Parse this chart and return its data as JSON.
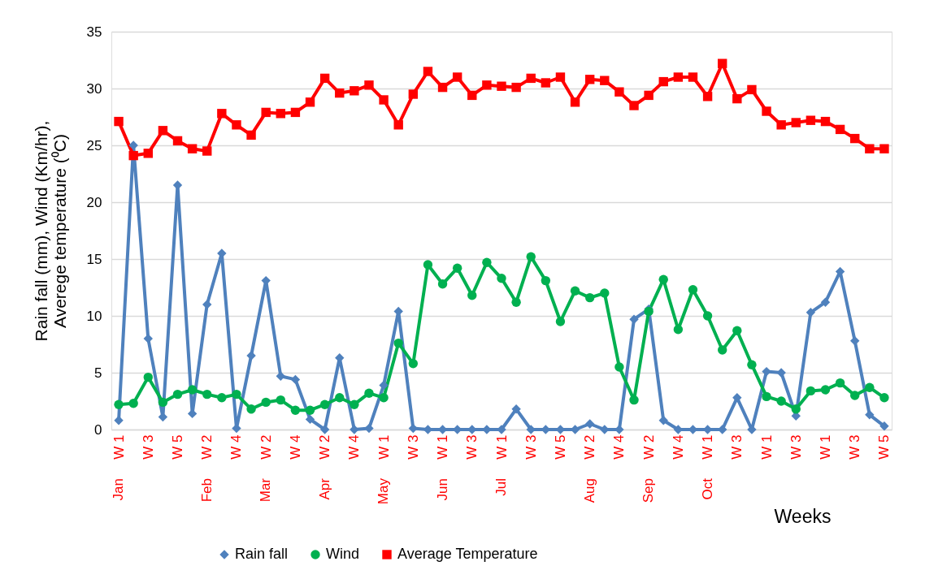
{
  "chart_data": {
    "type": "line",
    "xlabel": "Weeks",
    "ylabel": "Rain fall (mm), Wind (Km/hr),\nAverege temperature (⁰C)",
    "categories": [
      "W 1\nJan",
      null,
      "W 3",
      null,
      "W 5",
      null,
      "W 2\nFeb",
      null,
      "W 4",
      null,
      "W 2\nMar",
      null,
      "W 4",
      null,
      "W 2\nApr",
      null,
      "W 4",
      null,
      "W 1\nMay",
      null,
      "W 3",
      null,
      "W 1\nJun",
      null,
      "W 3",
      null,
      "W 1\nJul",
      null,
      "W 3",
      null,
      "W 5",
      null,
      "W 2\nAug",
      null,
      "W 4",
      null,
      "W 2\nSep",
      null,
      "W 4",
      null,
      "W 1\nOct",
      null,
      "W 3",
      null,
      "W 1",
      null,
      "W 3",
      null,
      "W 1",
      null,
      "W 3",
      null,
      "W 5"
    ],
    "series": [
      {
        "name": "Rain fall",
        "color": "#4f81bd",
        "marker": "diamond",
        "values": [
          0.8,
          25.0,
          8.0,
          1.1,
          21.5,
          1.4,
          11.0,
          15.5,
          0.1,
          6.5,
          13.1,
          4.7,
          4.4,
          0.9,
          0.0,
          6.3,
          0.0,
          0.1,
          3.9,
          10.4,
          0.1,
          0.0,
          0.0,
          0.0,
          0.0,
          0.0,
          0.0,
          1.8,
          0.0,
          0.0,
          0.0,
          0.0,
          0.5,
          0.0,
          0.0,
          9.7,
          10.6,
          0.8,
          0.0,
          0.0,
          0.0,
          0.0,
          2.8,
          0.0,
          5.1,
          5.0,
          1.2,
          10.3,
          11.2,
          13.9,
          7.8,
          1.3,
          0.3
        ]
      },
      {
        "name": "Wind",
        "color": "#00b050",
        "marker": "circle",
        "values": [
          2.2,
          2.3,
          4.6,
          2.4,
          3.1,
          3.5,
          3.1,
          2.8,
          3.1,
          1.8,
          2.4,
          2.6,
          1.7,
          1.7,
          2.2,
          2.8,
          2.2,
          3.2,
          2.8,
          7.6,
          5.8,
          14.5,
          12.8,
          14.2,
          11.8,
          14.7,
          13.3,
          11.2,
          15.2,
          13.1,
          9.5,
          12.2,
          11.6,
          12.0,
          5.5,
          2.6,
          10.4,
          13.2,
          8.8,
          12.3,
          10.0,
          7.0,
          8.7,
          5.7,
          2.9,
          2.5,
          1.8,
          3.4,
          3.5,
          4.1,
          3.0,
          3.7,
          2.8
        ]
      },
      {
        "name": "Average Temperature",
        "color": "#ff0000",
        "marker": "square",
        "values": [
          27.1,
          24.1,
          24.3,
          26.3,
          25.4,
          24.7,
          24.5,
          27.8,
          26.8,
          25.9,
          27.9,
          27.8,
          27.9,
          28.8,
          30.9,
          29.6,
          29.8,
          30.3,
          29.0,
          26.8,
          29.5,
          31.5,
          30.1,
          31.0,
          29.4,
          30.3,
          30.2,
          30.1,
          30.9,
          30.5,
          31.0,
          28.8,
          30.8,
          30.7,
          29.7,
          28.5,
          29.4,
          30.6,
          31.0,
          31.0,
          29.3,
          32.2,
          29.1,
          29.9,
          28.0,
          26.8,
          27.0,
          27.2,
          27.1,
          26.4,
          25.6,
          24.7,
          24.7
        ]
      }
    ],
    "ylim": [
      0,
      35
    ],
    "yticks": [
      0,
      5,
      10,
      15,
      20,
      25,
      30,
      35
    ],
    "grid": "y",
    "legend": "bottom",
    "line_style": "solid"
  }
}
